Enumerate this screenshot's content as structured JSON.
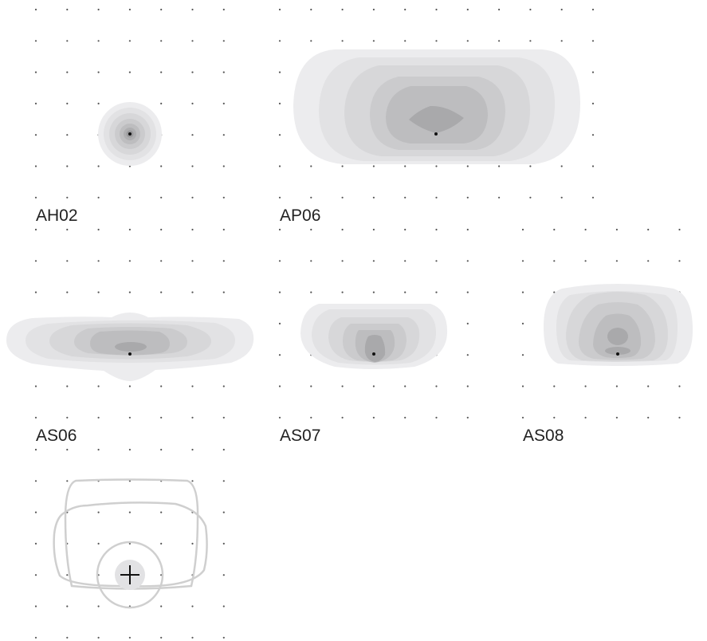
{
  "panels": [
    {
      "id": "ah02",
      "label": "AH02"
    },
    {
      "id": "ap06",
      "label": "AP06"
    },
    {
      "id": "as06",
      "label": "AS06"
    },
    {
      "id": "as07",
      "label": "AS07"
    },
    {
      "id": "as08",
      "label": "AS08"
    },
    {
      "id": "overlay",
      "label": ""
    }
  ],
  "colors": {
    "background": "#ffffff",
    "grid_dot": "#555555",
    "contour_fills": [
      "#ececee",
      "#e2e2e4",
      "#d7d7d9",
      "#cbcbcd",
      "#bdbdbf",
      "#aeaeb0",
      "#a0a0a2"
    ],
    "center_dot": "#111111",
    "overlay_stroke": "#cfcfcf"
  }
}
